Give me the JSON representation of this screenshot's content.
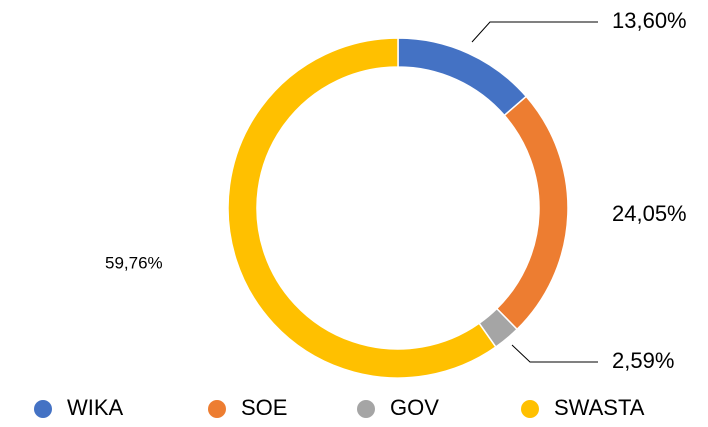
{
  "chart_data": {
    "type": "donut",
    "categories": [
      "WIKA",
      "SOE",
      "GOV",
      "SWASTA"
    ],
    "values": [
      13.6,
      24.05,
      2.59,
      59.76
    ],
    "value_labels": [
      "13,60%",
      "24,05%",
      "2,59%",
      "59,76%"
    ],
    "colors": [
      "#4472c4",
      "#ed7d31",
      "#a5a5a5",
      "#ffc000"
    ],
    "legend": "bottom"
  }
}
